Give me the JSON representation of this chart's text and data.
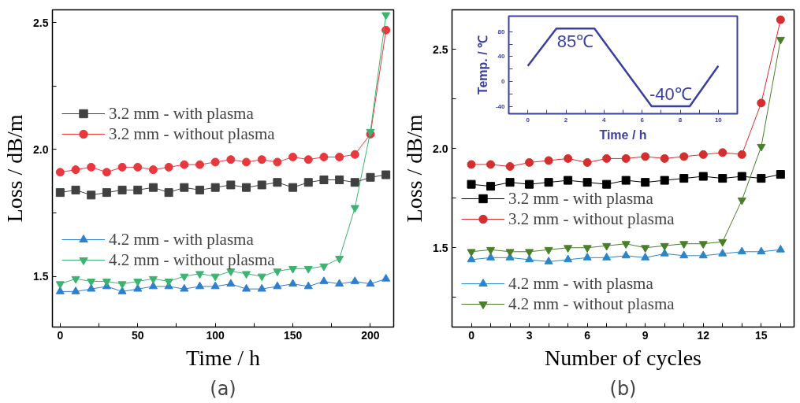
{
  "chart_data": [
    {
      "type": "line",
      "xlabel": "Time / h",
      "ylabel": "Loss / dB/m",
      "annotations": [
        "(a)"
      ],
      "xlim": [
        -5,
        215
      ],
      "ylim": [
        1.3,
        2.55
      ],
      "xticks": [
        0,
        {
          "value": 25,
          "label": null
        },
        50,
        {
          "value": 75,
          "label": null
        },
        100,
        {
          "value": 125,
          "label": null
        },
        150,
        {
          "value": 175,
          "label": null
        },
        200
      ],
      "yticks": [
        1.5,
        {
          "value": 1.75,
          "label": null
        },
        {
          "value": 2,
          "label": "2.0"
        },
        {
          "value": 2.25,
          "label": null
        },
        2.5
      ],
      "x": [
        0,
        10,
        20,
        30,
        40,
        50,
        60,
        70,
        80,
        90,
        100,
        110,
        120,
        130,
        140,
        150,
        160,
        170,
        180,
        190,
        200,
        210
      ],
      "grid": false,
      "legend": "left",
      "series": [
        {
          "name": "3.2 mm - with plasma",
          "color": "#404040",
          "marker": "square",
          "values": [
            1.83,
            1.84,
            1.82,
            1.83,
            1.84,
            1.84,
            1.85,
            1.83,
            1.85,
            1.84,
            1.85,
            1.86,
            1.85,
            1.86,
            1.87,
            1.85,
            1.87,
            1.88,
            1.88,
            1.87,
            1.89,
            1.9
          ]
        },
        {
          "name": "3.2 mm - without plasma",
          "color": "#e8383d",
          "marker": "circle",
          "values": [
            1.91,
            1.92,
            1.93,
            1.91,
            1.93,
            1.93,
            1.92,
            1.93,
            1.94,
            1.94,
            1.95,
            1.96,
            1.95,
            1.96,
            1.95,
            1.97,
            1.96,
            1.97,
            1.97,
            1.98,
            2.06,
            2.47
          ]
        },
        {
          "name": "4.2 mm - with plasma",
          "color": "#2f7fd0",
          "marker": "triangle",
          "values": [
            1.44,
            1.44,
            1.45,
            1.46,
            1.44,
            1.45,
            1.46,
            1.46,
            1.45,
            1.46,
            1.46,
            1.47,
            1.45,
            1.45,
            1.46,
            1.47,
            1.46,
            1.48,
            1.47,
            1.48,
            1.47,
            1.49
          ]
        },
        {
          "name": "4.2 mm - without plasma",
          "color": "#3cb371",
          "marker": "triangle_down",
          "values": [
            1.47,
            1.49,
            1.48,
            1.48,
            1.47,
            1.48,
            1.49,
            1.48,
            1.5,
            1.51,
            1.5,
            1.52,
            1.51,
            1.5,
            1.52,
            1.53,
            1.53,
            1.54,
            1.57,
            1.77,
            2.07,
            2.53
          ]
        }
      ]
    },
    {
      "type": "line",
      "xlabel": "Number of cycles",
      "ylabel": "Loss / dB/m",
      "annotations": [
        "(b)"
      ],
      "xlim": [
        -1,
        16.7
      ],
      "ylim": [
        1.1,
        2.7
      ],
      "xticks": [
        0,
        {
          "value": 1,
          "label": null
        },
        {
          "value": 2,
          "label": null
        },
        3,
        {
          "value": 4,
          "label": null
        },
        {
          "value": 5,
          "label": null
        },
        6,
        {
          "value": 7,
          "label": null
        },
        {
          "value": 8,
          "label": null
        },
        9,
        {
          "value": 10,
          "label": null
        },
        {
          "value": 11,
          "label": null
        },
        12,
        {
          "value": 13,
          "label": null
        },
        {
          "value": 14,
          "label": null
        },
        15,
        {
          "value": 16,
          "label": null
        }
      ],
      "yticks": [
        {
          "value": 1.25,
          "label": null
        },
        1.5,
        {
          "value": 1.75,
          "label": null
        },
        {
          "value": 2,
          "label": "2.0"
        },
        {
          "value": 2.25,
          "label": null
        },
        2.5
      ],
      "x": [
        0,
        1,
        2,
        3,
        4,
        5,
        6,
        7,
        8,
        9,
        10,
        11,
        12,
        13,
        14,
        15,
        16
      ],
      "grid": false,
      "legend": "bottom left",
      "series": [
        {
          "name": "3.2 mm - with plasma",
          "color": "#000000",
          "marker": "square",
          "values": [
            1.82,
            1.81,
            1.83,
            1.82,
            1.83,
            1.84,
            1.83,
            1.82,
            1.84,
            1.83,
            1.84,
            1.85,
            1.86,
            1.85,
            1.86,
            1.85,
            1.87
          ]
        },
        {
          "name": "3.2 mm - without plasma",
          "color": "#d42e2e",
          "marker": "circle",
          "values": [
            1.92,
            1.92,
            1.91,
            1.93,
            1.94,
            1.95,
            1.93,
            1.95,
            1.95,
            1.96,
            1.95,
            1.96,
            1.97,
            1.98,
            1.97,
            2.23,
            2.65
          ]
        },
        {
          "name": "4.2 mm - with plasma",
          "color": "#2a86c8",
          "marker": "triangle",
          "values": [
            1.44,
            1.45,
            1.45,
            1.44,
            1.43,
            1.44,
            1.45,
            1.45,
            1.46,
            1.45,
            1.47,
            1.46,
            1.46,
            1.47,
            1.48,
            1.48,
            1.49
          ]
        },
        {
          "name": "4.2 mm - without plasma",
          "color": "#4a7f2a",
          "marker": "triangle_down",
          "values": [
            1.48,
            1.49,
            1.48,
            1.48,
            1.49,
            1.5,
            1.5,
            1.51,
            1.52,
            1.5,
            1.51,
            1.52,
            1.52,
            1.53,
            1.74,
            2.01,
            2.55
          ]
        }
      ]
    },
    {
      "type": "line",
      "xlabel": "Time / h",
      "ylabel": "Temp. / ℃",
      "xlim": [
        -1,
        11
      ],
      "ylim": [
        -52,
        105
      ],
      "xticks": [
        0,
        {
          "value": 1,
          "label": null
        },
        2,
        {
          "value": 3,
          "label": null
        },
        4,
        {
          "value": 5,
          "label": null
        },
        6,
        {
          "value": 7,
          "label": null
        },
        8,
        {
          "value": 9,
          "label": null
        },
        10
      ],
      "yticks": [
        -40,
        {
          "value": -20,
          "label": null
        },
        0,
        {
          "value": 20,
          "label": null
        },
        40,
        {
          "value": 60,
          "label": null
        },
        80
      ],
      "grid": false,
      "annotations": [
        {
          "text": "85℃",
          "x": 2.5,
          "y": 85
        },
        {
          "text": "-40℃",
          "x": 7.5,
          "y": -40
        }
      ],
      "series": [
        {
          "color": "#3a3fa0",
          "marker": "none",
          "x": [
            0,
            1.5,
            3.5,
            6.5,
            8.5,
            10
          ],
          "values": [
            25,
            85,
            85,
            -40,
            -40,
            25
          ]
        }
      ]
    }
  ]
}
